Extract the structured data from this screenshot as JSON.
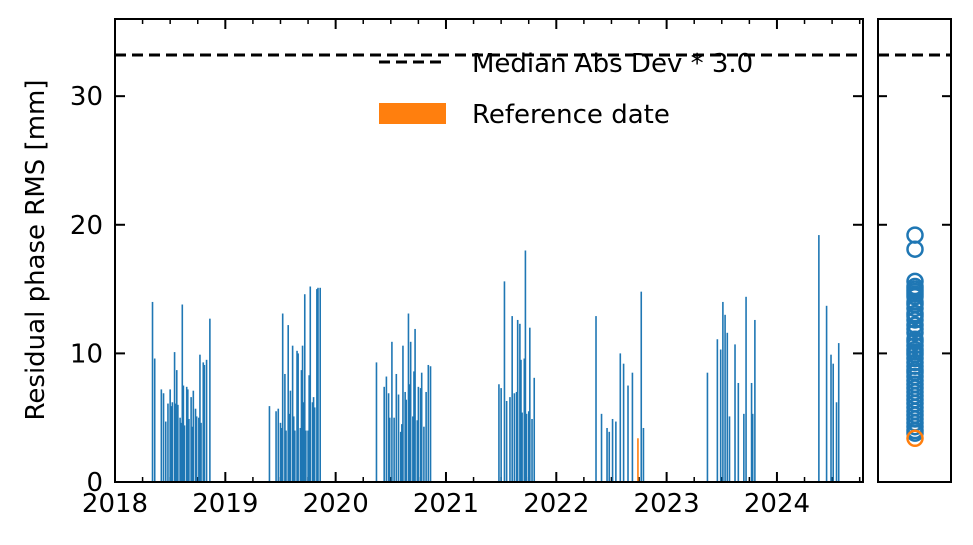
{
  "colors": {
    "series": "#1f77b4",
    "reference": "#ff7f0e",
    "threshold": "#000000",
    "axis": "#000000",
    "background": "#ffffff"
  },
  "chart_data": {
    "type": "bar",
    "ylabel": "Residual phase RMS [mm]",
    "xlabel": "",
    "x_ticks": [
      "2018",
      "2019",
      "2020",
      "2021",
      "2022",
      "2023",
      "2024"
    ],
    "x_tick_values": [
      2018,
      2019,
      2020,
      2021,
      2022,
      2023,
      2024
    ],
    "xlim": [
      2018.0,
      2024.78
    ],
    "y_ticks": [
      "0",
      "10",
      "20",
      "30"
    ],
    "y_tick_values": [
      0,
      10,
      20,
      30
    ],
    "ylim": [
      0,
      36
    ],
    "grid": false,
    "legend_position": "top-right",
    "legend": [
      {
        "label": "Median Abs Dev * 3.0",
        "kind": "dashed-line"
      },
      {
        "label": "Reference date",
        "kind": "patch"
      }
    ],
    "threshold": 33.2,
    "reference": {
      "x": 2022.74,
      "y": 3.4
    },
    "series": {
      "x": [
        2018.34,
        2018.36,
        2018.42,
        2018.44,
        2018.46,
        2018.48,
        2018.5,
        2018.51,
        2018.52,
        2018.54,
        2018.55,
        2018.56,
        2018.57,
        2018.59,
        2018.6,
        2018.61,
        2018.62,
        2018.63,
        2018.65,
        2018.66,
        2018.67,
        2018.69,
        2018.7,
        2018.71,
        2018.73,
        2018.74,
        2018.76,
        2018.77,
        2018.78,
        2018.8,
        2018.81,
        2018.83,
        2018.86,
        2019.4,
        2019.46,
        2019.48,
        2019.5,
        2019.51,
        2019.52,
        2019.54,
        2019.55,
        2019.57,
        2019.58,
        2019.59,
        2019.61,
        2019.62,
        2019.63,
        2019.65,
        2019.66,
        2019.68,
        2019.69,
        2019.7,
        2019.71,
        2019.72,
        2019.73,
        2019.75,
        2019.76,
        2019.77,
        2019.79,
        2019.8,
        2019.81,
        2019.83,
        2019.84,
        2019.86,
        2020.37,
        2020.44,
        2020.46,
        2020.48,
        2020.49,
        2020.51,
        2020.53,
        2020.55,
        2020.57,
        2020.59,
        2020.6,
        2020.61,
        2020.63,
        2020.64,
        2020.66,
        2020.67,
        2020.68,
        2020.7,
        2020.71,
        2020.72,
        2020.74,
        2020.75,
        2020.77,
        2020.78,
        2020.8,
        2020.82,
        2020.84,
        2020.86,
        2021.48,
        2021.5,
        2021.53,
        2021.55,
        2021.58,
        2021.6,
        2021.62,
        2021.64,
        2021.65,
        2021.67,
        2021.68,
        2021.69,
        2021.71,
        2021.72,
        2021.73,
        2021.75,
        2021.76,
        2021.78,
        2021.8,
        2022.36,
        2022.41,
        2022.46,
        2022.48,
        2022.51,
        2022.54,
        2022.58,
        2022.61,
        2022.65,
        2022.69,
        2022.77,
        2022.79,
        2023.37,
        2023.46,
        2023.49,
        2023.51,
        2023.53,
        2023.55,
        2023.57,
        2023.62,
        2023.65,
        2023.7,
        2023.72,
        2023.77,
        2023.78,
        2023.8,
        2024.38,
        2024.45,
        2024.49,
        2024.51,
        2024.54,
        2024.56
      ],
      "values": [
        14.0,
        9.6,
        7.2,
        6.9,
        4.7,
        6.1,
        7.2,
        5.9,
        6.2,
        10.1,
        6.1,
        8.7,
        6.0,
        5.0,
        4.6,
        13.8,
        7.5,
        4.4,
        7.4,
        7.2,
        4.9,
        6.6,
        4.3,
        7.1,
        5.7,
        5.1,
        5.0,
        9.9,
        4.6,
        9.3,
        9.1,
        9.5,
        12.7,
        5.9,
        5.5,
        5.7,
        4.6,
        4.2,
        13.1,
        8.4,
        4.0,
        12.2,
        5.3,
        7.1,
        10.6,
        5.1,
        4.0,
        10.2,
        10.0,
        4.2,
        8.7,
        10.6,
        6.2,
        14.6,
        4.0,
        4.0,
        8.3,
        15.2,
        6.2,
        6.6,
        5.8,
        15.0,
        15.1,
        15.1,
        9.3,
        7.4,
        8.2,
        6.9,
        5.0,
        10.9,
        5.0,
        8.4,
        6.8,
        3.9,
        4.5,
        10.6,
        7.0,
        6.4,
        13.1,
        7.6,
        10.9,
        5.1,
        8.6,
        11.9,
        4.8,
        7.4,
        7.3,
        8.5,
        4.3,
        7.0,
        9.1,
        9.0,
        7.6,
        7.3,
        15.6,
        6.3,
        6.6,
        12.9,
        6.9,
        7.0,
        12.6,
        12.3,
        9.5,
        5.4,
        9.6,
        18.0,
        5.3,
        5.5,
        12.0,
        4.9,
        8.1,
        12.9,
        5.3,
        4.2,
        3.9,
        4.9,
        4.7,
        10.0,
        9.2,
        7.5,
        8.5,
        14.8,
        4.2,
        8.5,
        11.1,
        10.3,
        14.0,
        13.0,
        11.6,
        5.1,
        10.7,
        7.7,
        5.3,
        14.4,
        7.7,
        5.3,
        12.6,
        19.2,
        13.7,
        9.9,
        9.2,
        6.2,
        10.8
      ]
    },
    "side_panel": {
      "type": "scatter",
      "values": [
        19.2,
        18.1,
        15.6,
        15.2,
        15.0,
        14.8,
        14.6,
        14.4,
        14.0,
        13.8,
        13.5,
        13.1,
        12.9,
        12.6,
        12.2,
        11.9,
        11.6,
        11.1,
        10.9,
        10.6,
        10.3,
        10.1,
        9.9,
        9.6,
        9.3,
        9.0,
        8.7,
        8.5,
        8.2,
        7.9,
        7.6,
        7.3,
        7.0,
        6.7,
        6.4,
        6.1,
        5.8,
        5.5,
        5.2,
        4.9,
        4.6,
        4.3,
        4.0,
        3.8
      ],
      "reference_value": 3.4
    }
  }
}
